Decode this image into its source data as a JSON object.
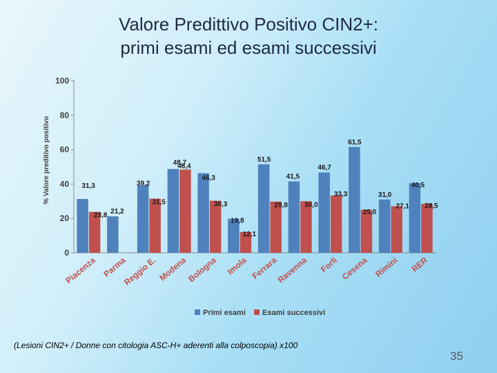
{
  "slide": {
    "title_line1": "Valore Predittivo Positivo CIN2+:",
    "title_line2": "primi esami ed esami successivi",
    "footnote": "(Lesioni CIN2+ / Donne con citologia ASC-H+ aderenti alla colposcopia) x100",
    "page_number": "35"
  },
  "chart_data": {
    "type": "bar",
    "title": "",
    "xlabel": "",
    "ylabel": "% Valore preditivo positivo",
    "ylim": [
      0,
      100
    ],
    "yticks": [
      0,
      20,
      40,
      60,
      80,
      100
    ],
    "grid": false,
    "legend_position": "bottom",
    "categories": [
      "Piacenza",
      "Parma",
      "Reggio E.",
      "Modena",
      "Bologna",
      "Imola",
      "Ferrara",
      "Ravenna",
      "Forlì",
      "Cesena",
      "Rimini",
      "RER"
    ],
    "series": [
      {
        "name": "Primi esami",
        "color": "#4f81bd",
        "values": [
          31.3,
          21.2,
          39.2,
          48.7,
          46.3,
          19.8,
          51.5,
          41.5,
          46.7,
          61.5,
          31.0,
          40.5
        ],
        "labels": [
          "31,3",
          "21,2",
          "39,2",
          "48,7",
          "46,3",
          "19,8",
          "51,5",
          "41,5",
          "46,7",
          "61,5",
          "31,0",
          "40,5"
        ]
      },
      {
        "name": "Esami successivi",
        "color": "#c0504d",
        "values": [
          23.8,
          0,
          31.5,
          48.4,
          30.3,
          12.1,
          29.8,
          30.0,
          33.3,
          25.0,
          27.1,
          28.5
        ],
        "labels": [
          "23,8",
          "",
          "31,5",
          "48,4",
          "30,3",
          "12,1",
          "29,8",
          "30,0",
          "33,3",
          "25,0",
          "27,1",
          "28,5"
        ]
      }
    ]
  }
}
